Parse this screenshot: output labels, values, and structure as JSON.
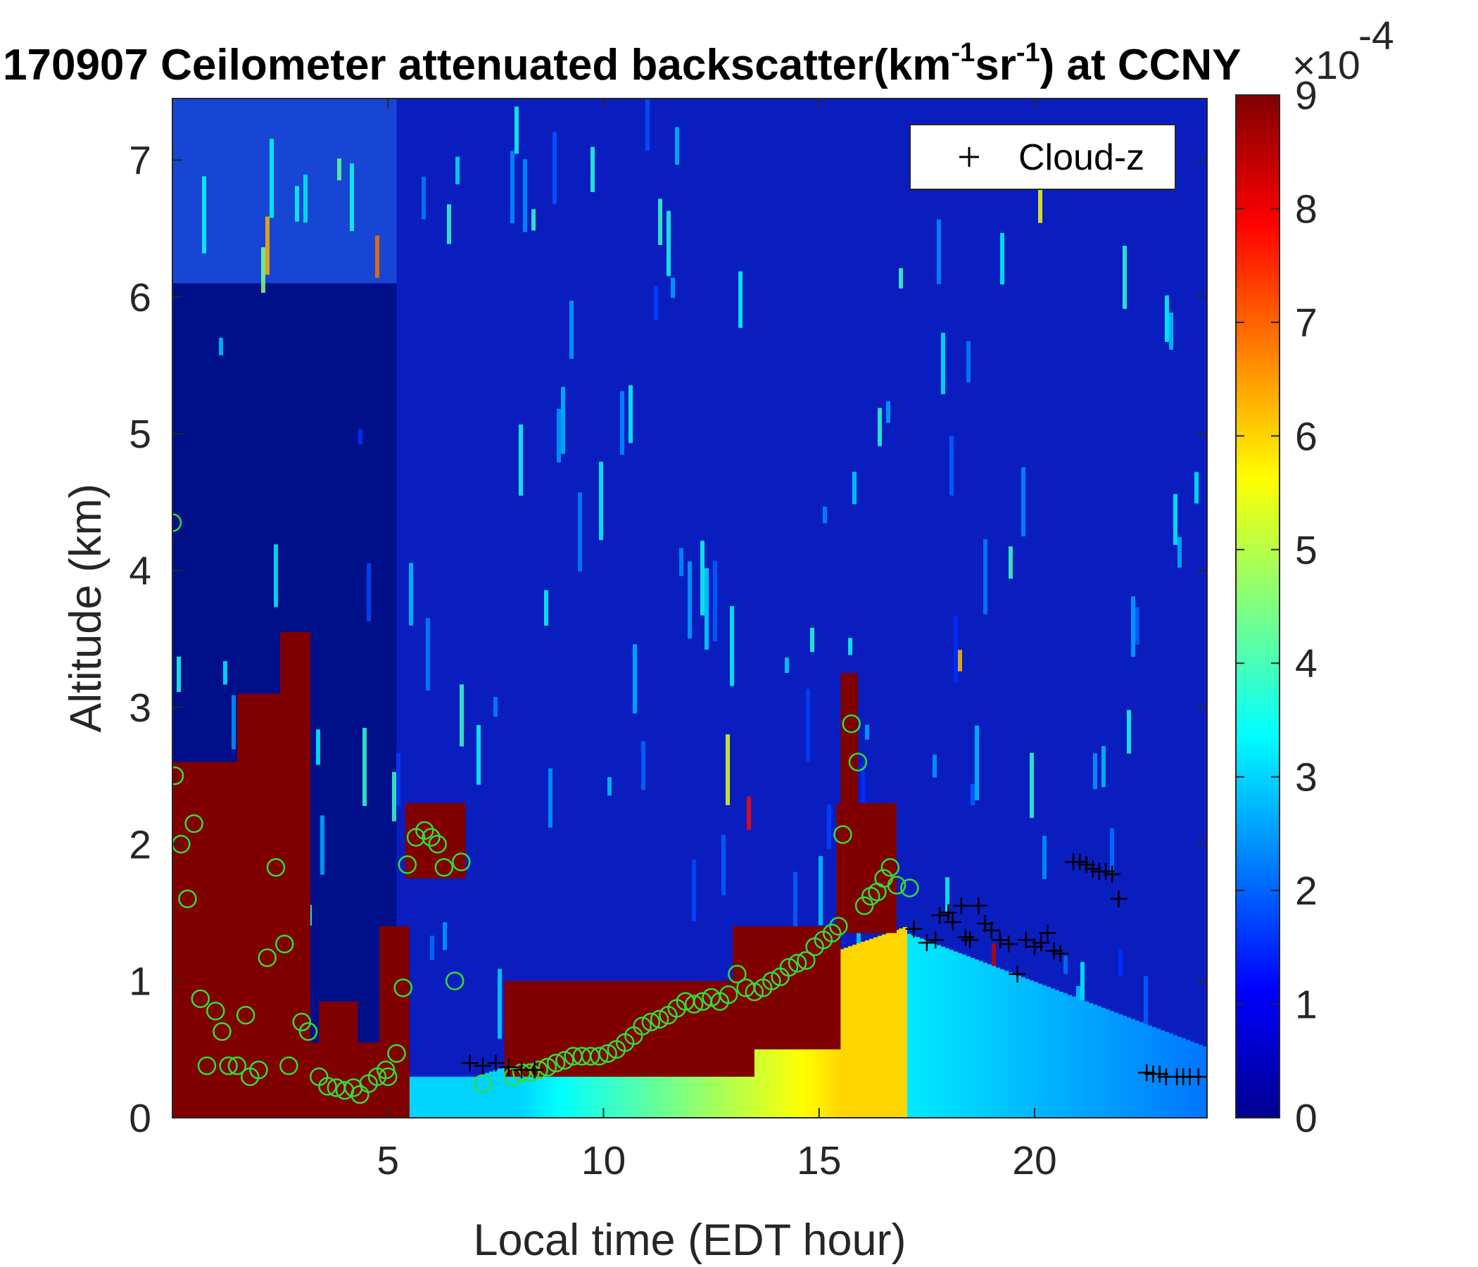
{
  "chart_data": {
    "type": "heatmap",
    "title": "170907 Ceilometer attenuated backscatter(km",
    "title_sup1": "-1",
    "title_mid": "sr",
    "title_sup2": "-1",
    "title_end": ") at CCNY",
    "xlabel": "Local time (EDT hour)",
    "ylabel": "Altitude (km)",
    "xlim": [
      0,
      24
    ],
    "ylim": [
      0,
      7.45
    ],
    "x_ticks": [
      5,
      10,
      15,
      20
    ],
    "x_tick_labels": [
      "5",
      "10",
      "15",
      "20"
    ],
    "y_ticks": [
      0,
      1,
      2,
      3,
      4,
      5,
      6,
      7
    ],
    "y_tick_labels": [
      "0",
      "1",
      "2",
      "3",
      "4",
      "5",
      "6",
      "7"
    ],
    "colorbar": {
      "colormap": "jet",
      "range": [
        0,
        9
      ],
      "ticks": [
        0,
        1,
        2,
        3,
        4,
        5,
        6,
        7,
        8,
        9
      ],
      "tick_labels": [
        "0",
        "1",
        "2",
        "3",
        "4",
        "5",
        "6",
        "7",
        "8",
        "9"
      ],
      "exponent_label": "×10",
      "exponent_power": "-4"
    },
    "legend": {
      "placement": "top-right",
      "entries": [
        {
          "name": "Cloud-z",
          "marker": "+",
          "color": "#000000"
        }
      ]
    },
    "green_marker_color": "#33dd33",
    "green_markers": [
      [
        0.0,
        4.35
      ],
      [
        0.05,
        2.5
      ],
      [
        0.2,
        2.0
      ],
      [
        0.35,
        1.6
      ],
      [
        0.5,
        2.15
      ],
      [
        0.65,
        0.87
      ],
      [
        0.8,
        0.38
      ],
      [
        1.0,
        0.78
      ],
      [
        1.15,
        0.63
      ],
      [
        1.3,
        0.38
      ],
      [
        1.5,
        0.38
      ],
      [
        1.7,
        0.75
      ],
      [
        1.8,
        0.3
      ],
      [
        2.0,
        0.35
      ],
      [
        2.2,
        1.17
      ],
      [
        2.4,
        1.83
      ],
      [
        2.6,
        1.27
      ],
      [
        2.7,
        0.38
      ],
      [
        3.0,
        0.7
      ],
      [
        3.15,
        0.63
      ],
      [
        3.4,
        0.3
      ],
      [
        3.6,
        0.23
      ],
      [
        3.8,
        0.22
      ],
      [
        4.0,
        0.2
      ],
      [
        4.2,
        0.22
      ],
      [
        4.35,
        0.17
      ],
      [
        4.55,
        0.25
      ],
      [
        4.75,
        0.3
      ],
      [
        4.95,
        0.35
      ],
      [
        5.0,
        0.3
      ],
      [
        5.2,
        0.47
      ],
      [
        5.35,
        0.95
      ],
      [
        5.45,
        1.85
      ],
      [
        5.65,
        2.05
      ],
      [
        5.85,
        2.1
      ],
      [
        6.0,
        2.05
      ],
      [
        6.15,
        2.0
      ],
      [
        6.3,
        1.83
      ],
      [
        6.55,
        1.0
      ],
      [
        6.7,
        1.87
      ],
      [
        7.2,
        0.25
      ],
      [
        7.9,
        0.3
      ],
      [
        8.1,
        0.33
      ],
      [
        8.3,
        0.33
      ],
      [
        8.5,
        0.35
      ],
      [
        8.7,
        0.37
      ],
      [
        8.9,
        0.4
      ],
      [
        9.1,
        0.42
      ],
      [
        9.3,
        0.45
      ],
      [
        9.5,
        0.45
      ],
      [
        9.7,
        0.45
      ],
      [
        9.9,
        0.45
      ],
      [
        10.1,
        0.47
      ],
      [
        10.3,
        0.5
      ],
      [
        10.5,
        0.55
      ],
      [
        10.7,
        0.6
      ],
      [
        10.9,
        0.67
      ],
      [
        11.1,
        0.7
      ],
      [
        11.3,
        0.72
      ],
      [
        11.5,
        0.75
      ],
      [
        11.7,
        0.8
      ],
      [
        11.9,
        0.85
      ],
      [
        12.1,
        0.83
      ],
      [
        12.3,
        0.85
      ],
      [
        12.5,
        0.88
      ],
      [
        12.7,
        0.85
      ],
      [
        12.9,
        0.9
      ],
      [
        13.1,
        1.05
      ],
      [
        13.3,
        0.95
      ],
      [
        13.5,
        0.92
      ],
      [
        13.7,
        0.95
      ],
      [
        13.9,
        1.0
      ],
      [
        14.1,
        1.03
      ],
      [
        14.3,
        1.1
      ],
      [
        14.5,
        1.13
      ],
      [
        14.7,
        1.15
      ],
      [
        14.9,
        1.25
      ],
      [
        15.1,
        1.3
      ],
      [
        15.3,
        1.35
      ],
      [
        15.45,
        1.4
      ],
      [
        15.55,
        2.07
      ],
      [
        15.75,
        2.88
      ],
      [
        15.9,
        2.6
      ],
      [
        16.05,
        1.55
      ],
      [
        16.2,
        1.62
      ],
      [
        16.35,
        1.65
      ],
      [
        16.5,
        1.75
      ],
      [
        16.65,
        1.83
      ],
      [
        16.8,
        1.7
      ],
      [
        17.1,
        1.68
      ]
    ],
    "cloud_z": [
      [
        6.9,
        0.4
      ],
      [
        7.2,
        0.38
      ],
      [
        7.5,
        0.4
      ],
      [
        7.8,
        0.37
      ],
      [
        8.1,
        0.35
      ],
      [
        8.4,
        0.35
      ],
      [
        17.2,
        1.38
      ],
      [
        17.5,
        1.28
      ],
      [
        17.7,
        1.3
      ],
      [
        17.8,
        1.48
      ],
      [
        18.0,
        1.5
      ],
      [
        18.1,
        1.43
      ],
      [
        18.3,
        1.55
      ],
      [
        18.4,
        1.32
      ],
      [
        18.5,
        1.3
      ],
      [
        18.7,
        1.55
      ],
      [
        18.85,
        1.42
      ],
      [
        19.0,
        1.37
      ],
      [
        19.2,
        1.3
      ],
      [
        19.4,
        1.27
      ],
      [
        19.6,
        1.05
      ],
      [
        19.8,
        1.3
      ],
      [
        20.0,
        1.25
      ],
      [
        20.15,
        1.28
      ],
      [
        20.3,
        1.35
      ],
      [
        20.45,
        1.22
      ],
      [
        20.6,
        1.2
      ],
      [
        20.9,
        1.87
      ],
      [
        21.05,
        1.87
      ],
      [
        21.2,
        1.85
      ],
      [
        21.35,
        1.82
      ],
      [
        21.5,
        1.8
      ],
      [
        21.65,
        1.8
      ],
      [
        21.8,
        1.78
      ],
      [
        21.95,
        1.6
      ],
      [
        22.6,
        0.33
      ],
      [
        22.75,
        0.32
      ],
      [
        22.9,
        0.32
      ],
      [
        23.05,
        0.3
      ],
      [
        23.3,
        0.3
      ],
      [
        23.45,
        0.3
      ],
      [
        23.6,
        0.3
      ],
      [
        23.8,
        0.3
      ]
    ]
  }
}
